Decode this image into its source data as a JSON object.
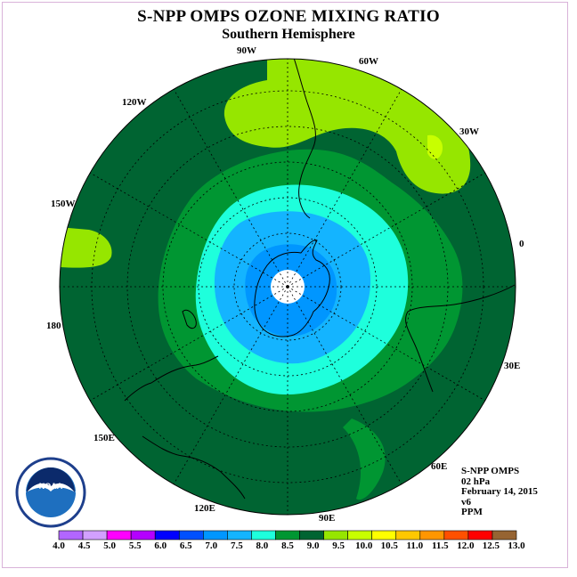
{
  "title": "S-NPP OMPS OZONE MIXING RATIO",
  "subtitle": "Southern Hemisphere",
  "longitude_labels": {
    "w90": "90W",
    "w60": "60W",
    "w120": "120W",
    "w30": "30W",
    "w150": "150W",
    "lon0": "0",
    "lon180": "180",
    "e30": "30E",
    "e150": "150E",
    "e60": "60E",
    "e120": "120E",
    "e90": "90E"
  },
  "info": {
    "instrument": "S-NPP OMPS",
    "level": "02 hPa",
    "date": "February 14, 2015",
    "version": "v6",
    "units": "PPM"
  },
  "logo": {
    "text": "NOAA",
    "ring_text": "NATIONAL OCEANIC AND ATMOSPHERIC ADMINISTRATION · U.S. DEPARTMENT OF COMMERCE"
  },
  "colorbar": {
    "labels": [
      "4.0",
      "4.5",
      "5.0",
      "5.5",
      "6.0",
      "6.5",
      "7.0",
      "7.5",
      "8.0",
      "8.5",
      "9.0",
      "9.5",
      "10.0",
      "10.5",
      "11.0",
      "11.5",
      "12.0",
      "12.5",
      "13.0"
    ],
    "colors": [
      "#b266ff",
      "#d2a0ff",
      "#ff00ff",
      "#b400ff",
      "#0000ff",
      "#0050ff",
      "#0096ff",
      "#14b4ff",
      "#1effdc",
      "#009632",
      "#006432",
      "#96e600",
      "#c8ff00",
      "#ffff00",
      "#ffc800",
      "#ff9600",
      "#ff5000",
      "#ff0000",
      "#966432"
    ]
  },
  "colors": {
    "c85": "#009632",
    "c90": "#006432",
    "c95": "#96e600",
    "c100": "#c8ff00",
    "c80": "#1effdc",
    "c75": "#14b4ff",
    "c70": "#0096ff",
    "c65": "#0050ff"
  }
}
